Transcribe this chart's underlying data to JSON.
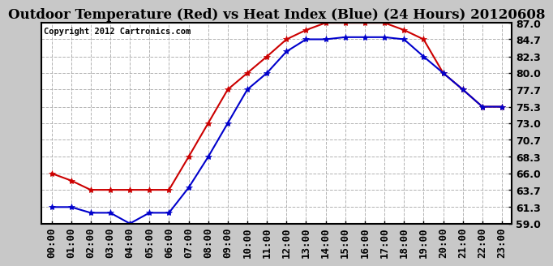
{
  "title": "Outdoor Temperature (Red) vs Heat Index (Blue) (24 Hours) 20120608",
  "copyright_text": "Copyright 2012 Cartronics.com",
  "hours": [
    "00:00",
    "01:00",
    "02:00",
    "03:00",
    "04:00",
    "05:00",
    "06:00",
    "07:00",
    "08:00",
    "09:00",
    "10:00",
    "11:00",
    "12:00",
    "13:00",
    "14:00",
    "15:00",
    "16:00",
    "17:00",
    "18:00",
    "19:00",
    "20:00",
    "21:00",
    "22:00",
    "23:00"
  ],
  "temp_red": [
    66.0,
    65.0,
    63.7,
    63.7,
    63.7,
    63.7,
    63.7,
    68.3,
    73.0,
    77.7,
    80.0,
    82.3,
    84.7,
    86.0,
    87.0,
    87.0,
    87.0,
    87.0,
    86.0,
    84.7,
    80.0,
    77.7,
    75.3,
    75.3
  ],
  "heat_blue": [
    61.3,
    61.3,
    60.5,
    60.5,
    59.0,
    60.5,
    60.5,
    64.0,
    68.3,
    73.0,
    77.7,
    80.0,
    83.0,
    84.7,
    84.7,
    85.0,
    85.0,
    85.0,
    84.7,
    82.3,
    80.0,
    77.7,
    75.3,
    75.3
  ],
  "ylim": [
    59.0,
    87.0
  ],
  "yticks": [
    59.0,
    61.3,
    63.7,
    66.0,
    68.3,
    70.7,
    73.0,
    75.3,
    77.7,
    80.0,
    82.3,
    84.7,
    87.0
  ],
  "red_color": "#cc0000",
  "blue_color": "#0000cc",
  "fig_bg_color": "#c8c8c8",
  "plot_bg_color": "#ffffff",
  "grid_color": "#aaaaaa",
  "border_color": "#000000",
  "title_fontsize": 12,
  "tick_fontsize": 9,
  "ytick_fontsize": 9,
  "copyright_fontsize": 7.5,
  "line_width": 1.5,
  "marker_size": 4
}
